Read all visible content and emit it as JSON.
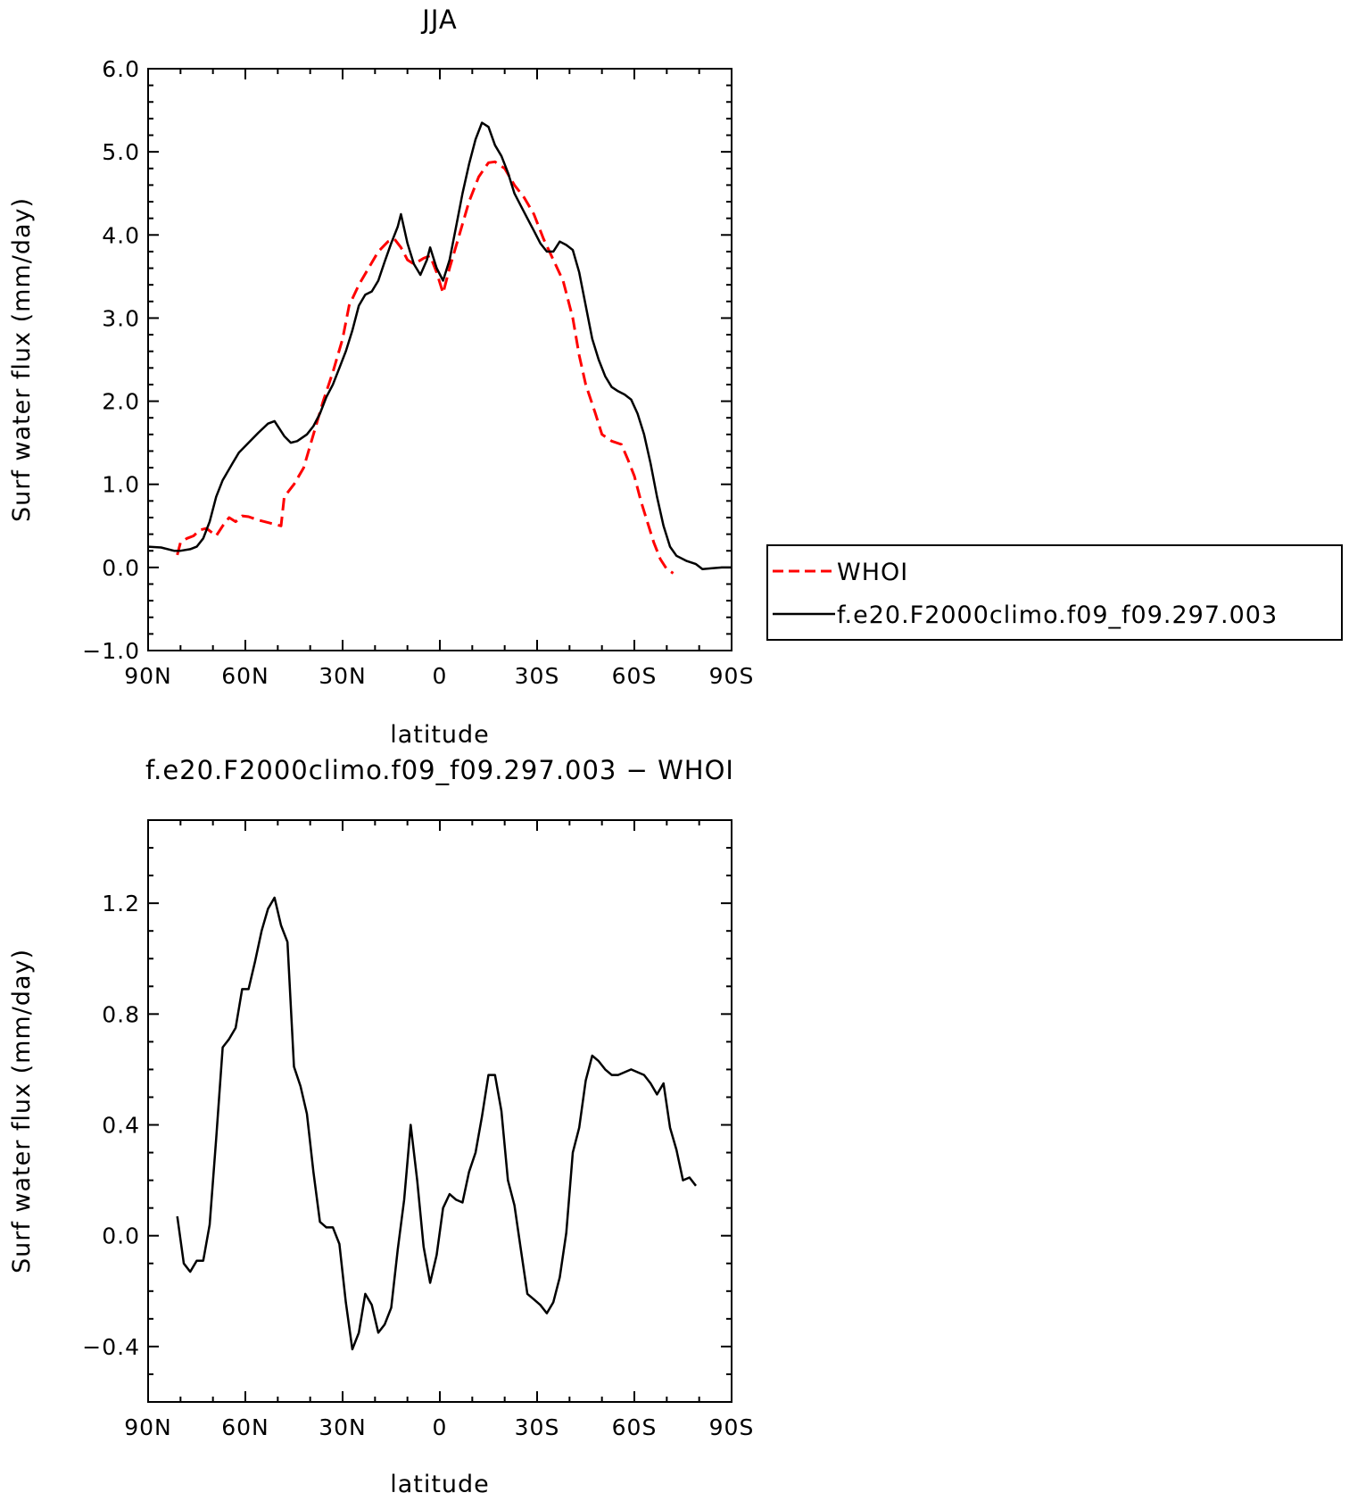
{
  "chart_data": [
    {
      "type": "line",
      "title": "JJA",
      "xlabel": "latitude",
      "ylabel": "Surf water flux (mm/day)",
      "xlim": [
        90,
        -90
      ],
      "ylim": [
        -1.0,
        6.0
      ],
      "x_ticks": [
        90,
        60,
        30,
        0,
        -30,
        -60,
        -90
      ],
      "x_tick_labels": [
        "90N",
        "60N",
        "30N",
        "0",
        "30S",
        "60S",
        "90S"
      ],
      "y_ticks": [
        -1,
        0,
        1,
        2,
        3,
        4,
        5,
        6
      ],
      "y_tick_labels": [
        "−1.0",
        "0.0",
        "1.0",
        "2.0",
        "3.0",
        "4.0",
        "5.0",
        "6.0"
      ],
      "grid": false,
      "legend_position": "right",
      "series": [
        {
          "name": "WHOI",
          "color": "#ff0000",
          "dash": "dashed",
          "points": [
            [
              81,
              0.15
            ],
            [
              80,
              0.3
            ],
            [
              78,
              0.35
            ],
            [
              76,
              0.38
            ],
            [
              74,
              0.45
            ],
            [
              72,
              0.47
            ],
            [
              69,
              0.38
            ],
            [
              67,
              0.5
            ],
            [
              65,
              0.6
            ],
            [
              63,
              0.55
            ],
            [
              61,
              0.62
            ],
            [
              59,
              0.61
            ],
            [
              56,
              0.57
            ],
            [
              53,
              0.54
            ],
            [
              49,
              0.5
            ],
            [
              48,
              0.85
            ],
            [
              45,
              1.0
            ],
            [
              42,
              1.2
            ],
            [
              39,
              1.6
            ],
            [
              36,
              2.0
            ],
            [
              33,
              2.35
            ],
            [
              30,
              2.75
            ],
            [
              28,
              3.15
            ],
            [
              25,
              3.4
            ],
            [
              22,
              3.6
            ],
            [
              19,
              3.8
            ],
            [
              16,
              3.92
            ],
            [
              14,
              3.95
            ],
            [
              12,
              3.85
            ],
            [
              10,
              3.7
            ],
            [
              8,
              3.65
            ],
            [
              5,
              3.72
            ],
            [
              3,
              3.75
            ],
            [
              1,
              3.55
            ],
            [
              -1,
              3.3
            ],
            [
              -3,
              3.6
            ],
            [
              -6,
              4.0
            ],
            [
              -9,
              4.4
            ],
            [
              -12,
              4.7
            ],
            [
              -15,
              4.87
            ],
            [
              -17,
              4.88
            ],
            [
              -20,
              4.8
            ],
            [
              -23,
              4.6
            ],
            [
              -26,
              4.45
            ],
            [
              -29,
              4.25
            ],
            [
              -32,
              3.95
            ],
            [
              -35,
              3.7
            ],
            [
              -38,
              3.45
            ],
            [
              -41,
              3.0
            ],
            [
              -43,
              2.55
            ],
            [
              -45,
              2.2
            ],
            [
              -48,
              1.85
            ],
            [
              -50,
              1.6
            ],
            [
              -53,
              1.52
            ],
            [
              -56,
              1.48
            ],
            [
              -58,
              1.3
            ],
            [
              -60,
              1.1
            ],
            [
              -62,
              0.8
            ],
            [
              -64,
              0.55
            ],
            [
              -66,
              0.3
            ],
            [
              -68,
              0.1
            ],
            [
              -70,
              -0.02
            ],
            [
              -72,
              -0.07
            ]
          ]
        },
        {
          "name": "f.e20.F2000climo.f09_f09.297.003",
          "color": "#000000",
          "dash": "solid",
          "points": [
            [
              90,
              0.25
            ],
            [
              86,
              0.24
            ],
            [
              82,
              0.2
            ],
            [
              80,
              0.2
            ],
            [
              77,
              0.22
            ],
            [
              75,
              0.25
            ],
            [
              73,
              0.35
            ],
            [
              71,
              0.55
            ],
            [
              69,
              0.85
            ],
            [
              67,
              1.05
            ],
            [
              64,
              1.25
            ],
            [
              62,
              1.38
            ],
            [
              59,
              1.5
            ],
            [
              56,
              1.62
            ],
            [
              53,
              1.73
            ],
            [
              51,
              1.76
            ],
            [
              48,
              1.58
            ],
            [
              46,
              1.5
            ],
            [
              44,
              1.52
            ],
            [
              41,
              1.6
            ],
            [
              39,
              1.7
            ],
            [
              37,
              1.85
            ],
            [
              35,
              2.05
            ],
            [
              33,
              2.2
            ],
            [
              31,
              2.4
            ],
            [
              29,
              2.6
            ],
            [
              27,
              2.85
            ],
            [
              25,
              3.15
            ],
            [
              23,
              3.28
            ],
            [
              21,
              3.32
            ],
            [
              19,
              3.45
            ],
            [
              17,
              3.68
            ],
            [
              15,
              3.9
            ],
            [
              13,
              4.1
            ],
            [
              12,
              4.25
            ],
            [
              10,
              3.9
            ],
            [
              8,
              3.65
            ],
            [
              6,
              3.52
            ],
            [
              4,
              3.7
            ],
            [
              3,
              3.85
            ],
            [
              1,
              3.6
            ],
            [
              -1,
              3.45
            ],
            [
              -3,
              3.7
            ],
            [
              -5,
              4.1
            ],
            [
              -7,
              4.5
            ],
            [
              -9,
              4.85
            ],
            [
              -11,
              5.15
            ],
            [
              -13,
              5.35
            ],
            [
              -15,
              5.3
            ],
            [
              -17,
              5.08
            ],
            [
              -19,
              4.95
            ],
            [
              -21,
              4.75
            ],
            [
              -23,
              4.5
            ],
            [
              -25,
              4.35
            ],
            [
              -27,
              4.2
            ],
            [
              -29,
              4.05
            ],
            [
              -31,
              3.9
            ],
            [
              -33,
              3.8
            ],
            [
              -35,
              3.8
            ],
            [
              -37,
              3.92
            ],
            [
              -39,
              3.88
            ],
            [
              -41,
              3.82
            ],
            [
              -43,
              3.55
            ],
            [
              -45,
              3.15
            ],
            [
              -47,
              2.75
            ],
            [
              -49,
              2.5
            ],
            [
              -51,
              2.3
            ],
            [
              -53,
              2.17
            ],
            [
              -55,
              2.12
            ],
            [
              -57,
              2.08
            ],
            [
              -59,
              2.02
            ],
            [
              -61,
              1.85
            ],
            [
              -63,
              1.6
            ],
            [
              -65,
              1.25
            ],
            [
              -67,
              0.85
            ],
            [
              -69,
              0.5
            ],
            [
              -71,
              0.25
            ],
            [
              -73,
              0.14
            ],
            [
              -76,
              0.08
            ],
            [
              -79,
              0.04
            ],
            [
              -81,
              -0.02
            ],
            [
              -84,
              -0.01
            ],
            [
              -87,
              0.0
            ],
            [
              -90,
              0.0
            ]
          ]
        }
      ]
    },
    {
      "type": "line",
      "title": "f.e20.F2000climo.f09_f09.297.003 − WHOI",
      "xlabel": "latitude",
      "ylabel": "Surf water flux (mm/day)",
      "xlim": [
        90,
        -90
      ],
      "ylim": [
        -0.6,
        1.5
      ],
      "x_ticks": [
        90,
        60,
        30,
        0,
        -30,
        -60,
        -90
      ],
      "x_tick_labels": [
        "90N",
        "60N",
        "30N",
        "0",
        "30S",
        "60S",
        "90S"
      ],
      "y_ticks": [
        -0.4,
        0.0,
        0.4,
        0.8,
        1.2
      ],
      "y_tick_labels": [
        "−0.4",
        "0.0",
        "0.4",
        "0.8",
        "1.2"
      ],
      "grid": false,
      "series": [
        {
          "color": "#000000",
          "dash": "solid",
          "points": [
            [
              81,
              0.07
            ],
            [
              79,
              -0.1
            ],
            [
              77,
              -0.13
            ],
            [
              75,
              -0.09
            ],
            [
              73,
              -0.09
            ],
            [
              71,
              0.04
            ],
            [
              69,
              0.35
            ],
            [
              67,
              0.68
            ],
            [
              65,
              0.71
            ],
            [
              63,
              0.75
            ],
            [
              61,
              0.89
            ],
            [
              59,
              0.89
            ],
            [
              57,
              0.99
            ],
            [
              55,
              1.1
            ],
            [
              53,
              1.18
            ],
            [
              51,
              1.22
            ],
            [
              49,
              1.12
            ],
            [
              47,
              1.06
            ],
            [
              45,
              0.61
            ],
            [
              43,
              0.54
            ],
            [
              41,
              0.44
            ],
            [
              39,
              0.23
            ],
            [
              37,
              0.05
            ],
            [
              35,
              0.03
            ],
            [
              33,
              0.03
            ],
            [
              31,
              -0.03
            ],
            [
              29,
              -0.24
            ],
            [
              27,
              -0.41
            ],
            [
              25,
              -0.35
            ],
            [
              23,
              -0.21
            ],
            [
              21,
              -0.25
            ],
            [
              19,
              -0.35
            ],
            [
              17,
              -0.32
            ],
            [
              15,
              -0.26
            ],
            [
              13,
              -0.05
            ],
            [
              11,
              0.13
            ],
            [
              9,
              0.4
            ],
            [
              7,
              0.2
            ],
            [
              5,
              -0.04
            ],
            [
              3,
              -0.17
            ],
            [
              1,
              -0.07
            ],
            [
              -1,
              0.1
            ],
            [
              -3,
              0.15
            ],
            [
              -5,
              0.13
            ],
            [
              -7,
              0.12
            ],
            [
              -9,
              0.23
            ],
            [
              -11,
              0.3
            ],
            [
              -13,
              0.43
            ],
            [
              -15,
              0.58
            ],
            [
              -17,
              0.58
            ],
            [
              -19,
              0.45
            ],
            [
              -21,
              0.2
            ],
            [
              -23,
              0.11
            ],
            [
              -25,
              -0.05
            ],
            [
              -27,
              -0.21
            ],
            [
              -29,
              -0.23
            ],
            [
              -31,
              -0.25
            ],
            [
              -33,
              -0.28
            ],
            [
              -35,
              -0.24
            ],
            [
              -37,
              -0.15
            ],
            [
              -39,
              0.01
            ],
            [
              -41,
              0.3
            ],
            [
              -43,
              0.39
            ],
            [
              -45,
              0.56
            ],
            [
              -47,
              0.65
            ],
            [
              -49,
              0.63
            ],
            [
              -51,
              0.6
            ],
            [
              -53,
              0.58
            ],
            [
              -55,
              0.58
            ],
            [
              -57,
              0.59
            ],
            [
              -59,
              0.6
            ],
            [
              -61,
              0.59
            ],
            [
              -63,
              0.58
            ],
            [
              -65,
              0.55
            ],
            [
              -67,
              0.51
            ],
            [
              -69,
              0.55
            ],
            [
              -71,
              0.39
            ],
            [
              -73,
              0.31
            ],
            [
              -75,
              0.2
            ],
            [
              -77,
              0.21
            ],
            [
              -79,
              0.18
            ]
          ]
        }
      ]
    }
  ]
}
